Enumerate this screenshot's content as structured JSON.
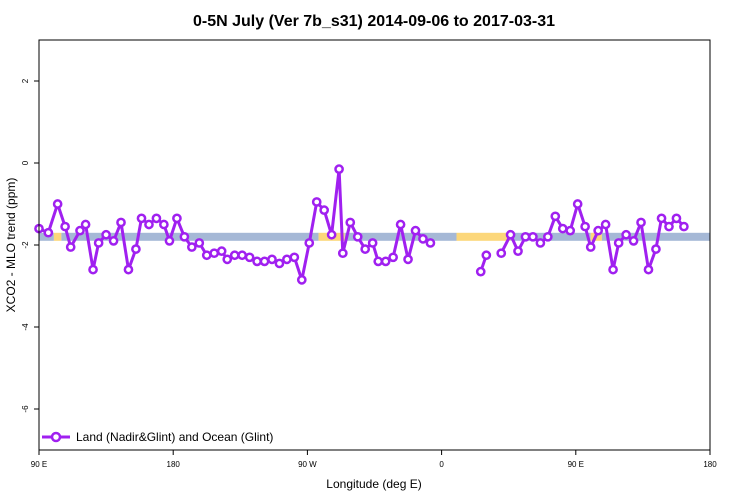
{
  "chart_data": {
    "type": "line",
    "title": "0-5N July (Ver 7b_s31)   2014-09-06 to 2017-03-31",
    "xlabel": "Longitude (deg E)",
    "ylabel": "XCO2 - MLO trend (ppm)",
    "xlim": [
      90,
      450
    ],
    "ylim": [
      -7,
      3
    ],
    "x_ticks": [
      {
        "value": 90,
        "label": "90 E"
      },
      {
        "value": 162,
        "label": "180"
      },
      {
        "value": 234,
        "label": "90 W"
      },
      {
        "value": 306,
        "label": "0"
      },
      {
        "value": 378,
        "label": "90 E"
      },
      {
        "value": 450,
        "label": "180"
      }
    ],
    "y_ticks": [
      {
        "value": -6,
        "label": "-6"
      },
      {
        "value": -4,
        "label": "-4"
      },
      {
        "value": -2,
        "label": "-2"
      },
      {
        "value": 0,
        "label": "0"
      },
      {
        "value": 2,
        "label": "2"
      }
    ],
    "band": {
      "y": -1.8,
      "land_color": "#a5b8d6",
      "ocean_color": "#fcd77a",
      "segments": [
        {
          "x0": 90,
          "x1": 98,
          "kind": "land"
        },
        {
          "x0": 98,
          "x1": 102,
          "kind": "ocean"
        },
        {
          "x0": 102,
          "x1": 240,
          "kind": "land"
        },
        {
          "x0": 240,
          "x1": 254,
          "kind": "ocean"
        },
        {
          "x0": 254,
          "x1": 314,
          "kind": "land"
        },
        {
          "x0": 314,
          "x1": 343,
          "kind": "ocean"
        },
        {
          "x0": 343,
          "x1": 386,
          "kind": "land"
        },
        {
          "x0": 386,
          "x1": 392,
          "kind": "ocean"
        },
        {
          "x0": 392,
          "x1": 450,
          "kind": "land"
        }
      ]
    },
    "series": [
      {
        "name": "Land (Nadir&Glint) and Ocean (Glint)",
        "color": "#a020f0",
        "segments": [
          [
            [
              90,
              -1.6
            ],
            [
              95,
              -1.7
            ],
            [
              100,
              -1.0
            ],
            [
              104,
              -1.55
            ],
            [
              107,
              -2.05
            ],
            [
              112,
              -1.65
            ],
            [
              115,
              -1.5
            ],
            [
              119,
              -2.6
            ],
            [
              122,
              -1.95
            ],
            [
              126,
              -1.75
            ],
            [
              130,
              -1.9
            ],
            [
              134,
              -1.45
            ],
            [
              138,
              -2.6
            ],
            [
              142,
              -2.1
            ],
            [
              145,
              -1.35
            ],
            [
              149,
              -1.5
            ],
            [
              153,
              -1.35
            ],
            [
              157,
              -1.5
            ],
            [
              160,
              -1.9
            ],
            [
              164,
              -1.35
            ],
            [
              168,
              -1.8
            ],
            [
              172,
              -2.05
            ],
            [
              176,
              -1.95
            ],
            [
              180,
              -2.25
            ],
            [
              184,
              -2.2
            ],
            [
              188,
              -2.15
            ],
            [
              191,
              -2.35
            ],
            [
              195,
              -2.25
            ],
            [
              199,
              -2.25
            ],
            [
              203,
              -2.3
            ],
            [
              207,
              -2.4
            ],
            [
              211,
              -2.4
            ],
            [
              215,
              -2.35
            ],
            [
              219,
              -2.45
            ],
            [
              223,
              -2.35
            ],
            [
              227,
              -2.3
            ],
            [
              231,
              -2.85
            ],
            [
              235,
              -1.95
            ],
            [
              239,
              -0.95
            ],
            [
              243,
              -1.15
            ],
            [
              247,
              -1.75
            ],
            [
              251,
              -0.15
            ],
            [
              253,
              -2.2
            ],
            [
              257,
              -1.45
            ],
            [
              261,
              -1.8
            ],
            [
              265,
              -2.1
            ],
            [
              269,
              -1.95
            ],
            [
              272,
              -2.4
            ],
            [
              276,
              -2.4
            ],
            [
              280,
              -2.3
            ],
            [
              284,
              -1.5
            ],
            [
              288,
              -2.35
            ],
            [
              292,
              -1.65
            ],
            [
              296,
              -1.85
            ],
            [
              300,
              -1.95
            ]
          ],
          [
            [
              327,
              -2.65
            ],
            [
              330,
              -2.25
            ]
          ],
          [
            [
              338,
              -2.2
            ],
            [
              343,
              -1.75
            ],
            [
              347,
              -2.15
            ],
            [
              351,
              -1.8
            ],
            [
              355,
              -1.8
            ],
            [
              359,
              -1.95
            ],
            [
              363,
              -1.8
            ],
            [
              367,
              -1.3
            ],
            [
              371,
              -1.6
            ],
            [
              375,
              -1.65
            ],
            [
              379,
              -1.0
            ],
            [
              383,
              -1.55
            ],
            [
              386,
              -2.05
            ],
            [
              390,
              -1.65
            ],
            [
              394,
              -1.5
            ],
            [
              398,
              -2.6
            ],
            [
              401,
              -1.95
            ],
            [
              405,
              -1.75
            ],
            [
              409,
              -1.9
            ],
            [
              413,
              -1.45
            ],
            [
              417,
              -2.6
            ],
            [
              421,
              -2.1
            ],
            [
              424,
              -1.35
            ],
            [
              428,
              -1.55
            ],
            [
              432,
              -1.35
            ],
            [
              436,
              -1.55
            ]
          ]
        ]
      }
    ],
    "legend": {
      "position": "bottom-left"
    },
    "grid": false
  }
}
